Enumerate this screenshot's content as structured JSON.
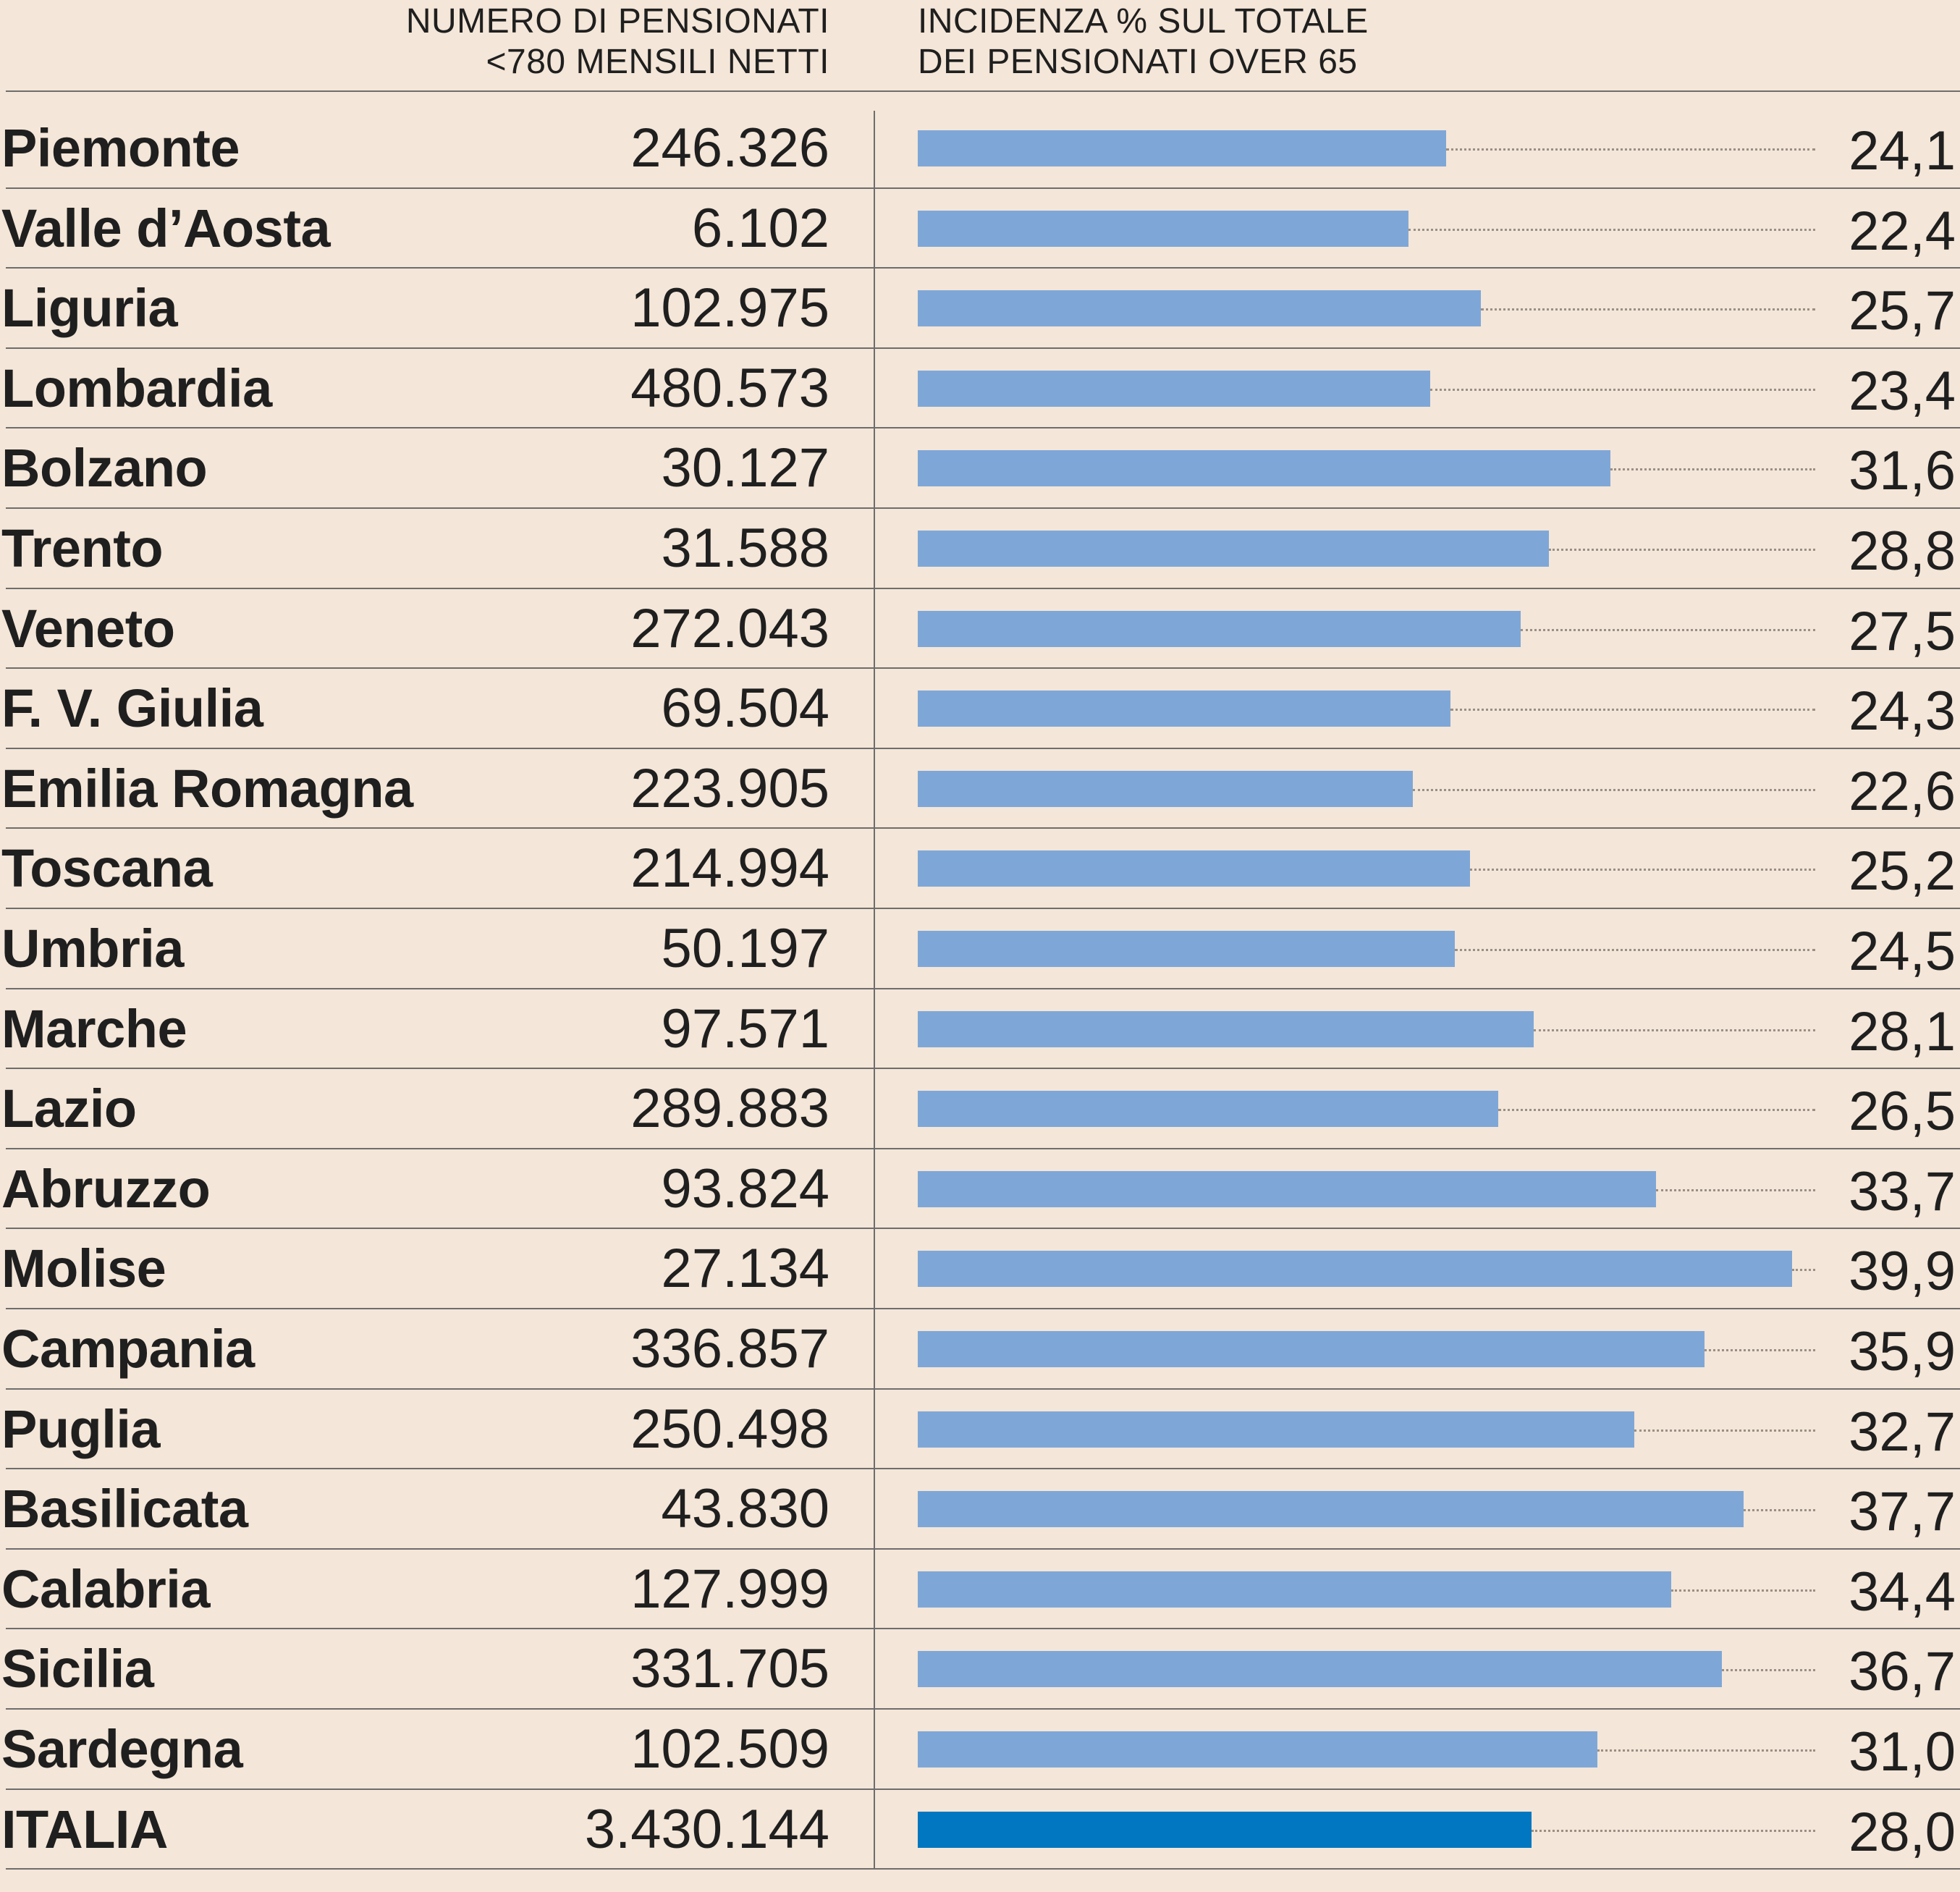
{
  "header": {
    "count_line1": "NUMERO DI PENSIONATI",
    "count_line2": "<780 MENSILI NETTI",
    "pct_line1": "INCIDENZA % SUL TOTALE",
    "pct_line2": "DEI PENSIONATI OVER 65"
  },
  "colors": {
    "background": "#f4e6d8",
    "bar_region": "#7ea7d8",
    "bar_total": "#0077c0",
    "text": "#1f1f1f"
  },
  "chart_data": {
    "type": "bar",
    "orientation": "horizontal",
    "categories": [
      "Piemonte",
      "Valle d’Aosta",
      "Liguria",
      "Lombardia",
      "Bolzano",
      "Trento",
      "Veneto",
      "F. V. Giulia",
      "Emilia Romagna",
      "Toscana",
      "Umbria",
      "Marche",
      "Lazio",
      "Abruzzo",
      "Molise",
      "Campania",
      "Puglia",
      "Basilicata",
      "Calabria",
      "Sicilia",
      "Sardegna",
      "ITALIA"
    ],
    "counts": [
      "246.326",
      "6.102",
      "102.975",
      "480.573",
      "30.127",
      "31.588",
      "272.043",
      "69.504",
      "223.905",
      "214.994",
      "50.197",
      "97.571",
      "289.883",
      "93.824",
      "27.134",
      "336.857",
      "250.498",
      "43.830",
      "127.999",
      "331.705",
      "102.509",
      "3.430.144"
    ],
    "values": [
      24.1,
      22.4,
      25.7,
      23.4,
      31.6,
      28.8,
      27.5,
      24.3,
      22.6,
      25.2,
      24.5,
      28.1,
      26.5,
      33.7,
      39.9,
      35.9,
      32.7,
      37.7,
      34.4,
      36.7,
      31.0,
      28.0
    ],
    "value_labels": [
      "24,1",
      "22,4",
      "25,7",
      "23,4",
      "31,6",
      "28,8",
      "27,5",
      "24,3",
      "22,6",
      "25,2",
      "24,5",
      "28,1",
      "26,5",
      "33,7",
      "39,9",
      "35,9",
      "32,7",
      "37,7",
      "34,4",
      "36,7",
      "31,0",
      "28,0"
    ],
    "highlight_category": "ITALIA",
    "xlim": [
      0,
      39.9
    ],
    "grid": false,
    "legend": "none"
  }
}
